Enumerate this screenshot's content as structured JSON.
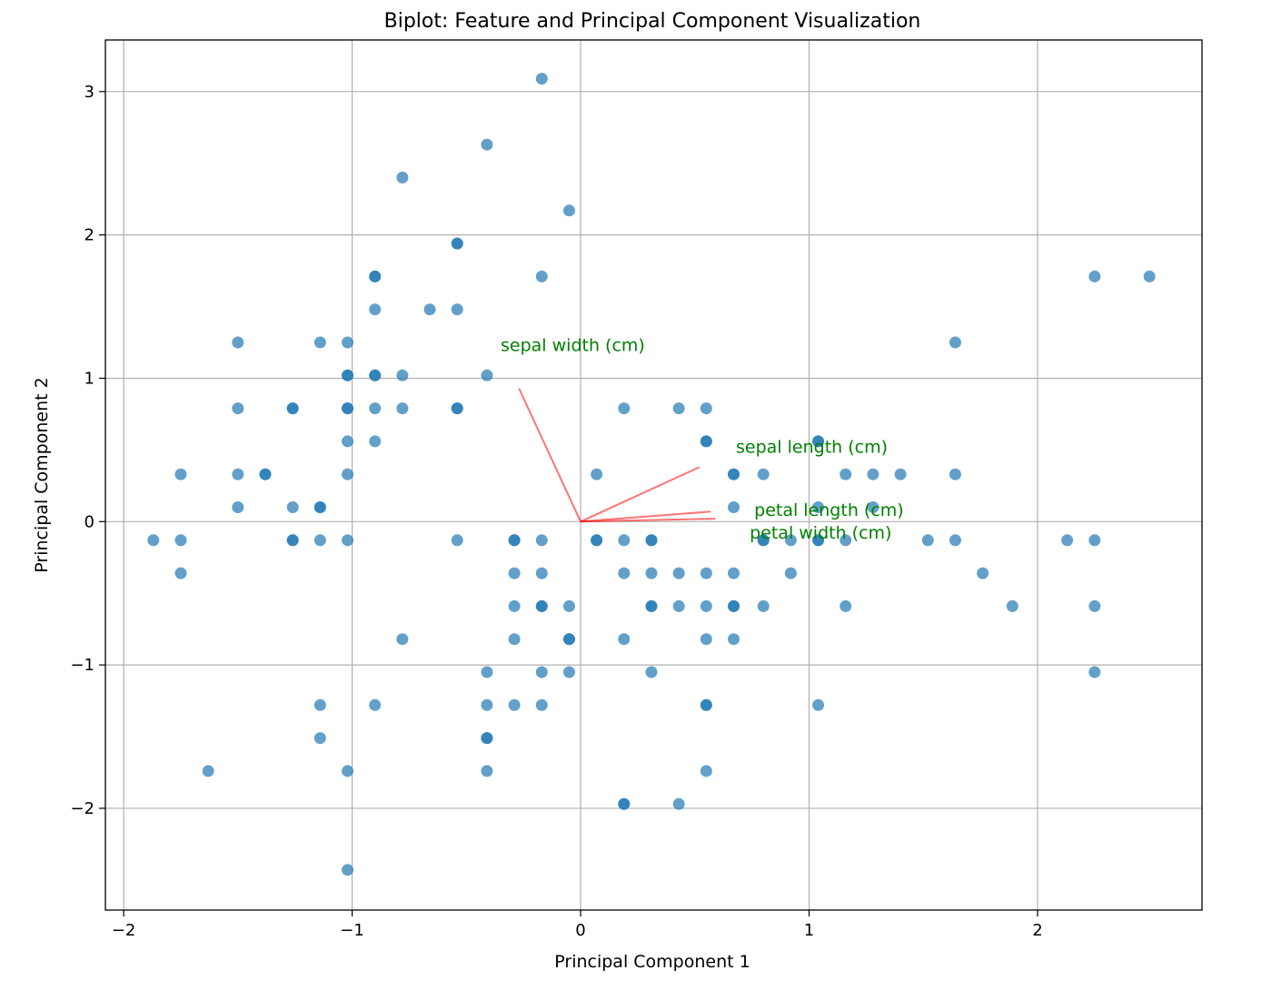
{
  "chart_data": {
    "type": "scatter",
    "title": "Biplot: Feature and Principal Component Visualization",
    "xlabel": "Principal Component 1",
    "ylabel": "Principal Component 2",
    "xlim": [
      -2.08,
      2.72
    ],
    "ylim": [
      -2.71,
      3.36
    ],
    "xticks": [
      -2,
      -1,
      0,
      1,
      2
    ],
    "yticks": [
      -2,
      -1,
      0,
      1,
      2,
      3
    ],
    "xtick_labels": [
      "−2",
      "−1",
      "0",
      "1",
      "2"
    ],
    "ytick_labels": [
      "−2",
      "−1",
      "0",
      "1",
      "2",
      "3"
    ],
    "grid": true,
    "point_color": "#1f77b4",
    "arrow_color": "#ff0000",
    "label_color": "#008000",
    "points": [
      [
        -0.17,
        3.09
      ],
      [
        -0.41,
        2.63
      ],
      [
        -0.78,
        2.4
      ],
      [
        -0.05,
        2.17
      ],
      [
        -0.54,
        1.94
      ],
      [
        -0.54,
        1.94
      ],
      [
        -0.9,
        1.71
      ],
      [
        -0.9,
        1.71
      ],
      [
        -0.17,
        1.71
      ],
      [
        2.25,
        1.71
      ],
      [
        2.49,
        1.71
      ],
      [
        -0.9,
        1.48
      ],
      [
        -0.66,
        1.48
      ],
      [
        -0.54,
        1.48
      ],
      [
        -1.5,
        1.25
      ],
      [
        -1.14,
        1.25
      ],
      [
        -1.02,
        1.25
      ],
      [
        1.64,
        1.25
      ],
      [
        -1.02,
        1.02
      ],
      [
        -1.02,
        1.02
      ],
      [
        -0.9,
        1.02
      ],
      [
        -0.9,
        1.02
      ],
      [
        -0.78,
        1.02
      ],
      [
        -0.41,
        1.02
      ],
      [
        -1.5,
        0.79
      ],
      [
        -1.26,
        0.79
      ],
      [
        -1.26,
        0.79
      ],
      [
        -1.02,
        0.79
      ],
      [
        -1.02,
        0.79
      ],
      [
        -0.9,
        0.79
      ],
      [
        -0.78,
        0.79
      ],
      [
        -0.54,
        0.79
      ],
      [
        -0.54,
        0.79
      ],
      [
        0.19,
        0.79
      ],
      [
        0.43,
        0.79
      ],
      [
        0.55,
        0.79
      ],
      [
        -1.02,
        0.56
      ],
      [
        -0.9,
        0.56
      ],
      [
        0.55,
        0.56
      ],
      [
        0.55,
        0.56
      ],
      [
        1.04,
        0.56
      ],
      [
        1.04,
        0.56
      ],
      [
        -1.75,
        0.33
      ],
      [
        -1.5,
        0.33
      ],
      [
        -1.38,
        0.33
      ],
      [
        -1.38,
        0.33
      ],
      [
        -1.02,
        0.33
      ],
      [
        0.07,
        0.33
      ],
      [
        0.67,
        0.33
      ],
      [
        0.67,
        0.33
      ],
      [
        0.8,
        0.33
      ],
      [
        1.16,
        0.33
      ],
      [
        1.28,
        0.33
      ],
      [
        1.4,
        0.33
      ],
      [
        1.64,
        0.33
      ],
      [
        -1.5,
        0.1
      ],
      [
        -1.26,
        0.1
      ],
      [
        -1.14,
        0.1
      ],
      [
        -1.14,
        0.1
      ],
      [
        0.67,
        0.1
      ],
      [
        1.04,
        0.1
      ],
      [
        1.28,
        0.1
      ],
      [
        -1.87,
        -0.13
      ],
      [
        -1.75,
        -0.13
      ],
      [
        -1.26,
        -0.13
      ],
      [
        -1.26,
        -0.13
      ],
      [
        -1.14,
        -0.13
      ],
      [
        -1.02,
        -0.13
      ],
      [
        -0.54,
        -0.13
      ],
      [
        -0.29,
        -0.13
      ],
      [
        -0.29,
        -0.13
      ],
      [
        -0.17,
        -0.13
      ],
      [
        0.07,
        -0.13
      ],
      [
        0.07,
        -0.13
      ],
      [
        0.19,
        -0.13
      ],
      [
        0.31,
        -0.13
      ],
      [
        0.31,
        -0.13
      ],
      [
        0.8,
        -0.13
      ],
      [
        0.8,
        -0.13
      ],
      [
        0.92,
        -0.13
      ],
      [
        1.04,
        -0.13
      ],
      [
        1.04,
        -0.13
      ],
      [
        1.16,
        -0.13
      ],
      [
        1.52,
        -0.13
      ],
      [
        1.64,
        -0.13
      ],
      [
        2.13,
        -0.13
      ],
      [
        2.25,
        -0.13
      ],
      [
        -1.75,
        -0.36
      ],
      [
        -0.29,
        -0.36
      ],
      [
        -0.17,
        -0.36
      ],
      [
        0.19,
        -0.36
      ],
      [
        0.31,
        -0.36
      ],
      [
        0.43,
        -0.36
      ],
      [
        0.55,
        -0.36
      ],
      [
        0.67,
        -0.36
      ],
      [
        0.92,
        -0.36
      ],
      [
        1.76,
        -0.36
      ],
      [
        -0.29,
        -0.59
      ],
      [
        -0.17,
        -0.59
      ],
      [
        -0.17,
        -0.59
      ],
      [
        -0.05,
        -0.59
      ],
      [
        0.31,
        -0.59
      ],
      [
        0.31,
        -0.59
      ],
      [
        0.43,
        -0.59
      ],
      [
        0.55,
        -0.59
      ],
      [
        0.67,
        -0.59
      ],
      [
        0.67,
        -0.59
      ],
      [
        0.8,
        -0.59
      ],
      [
        1.16,
        -0.59
      ],
      [
        1.89,
        -0.59
      ],
      [
        2.25,
        -0.59
      ],
      [
        -0.78,
        -0.82
      ],
      [
        -0.29,
        -0.82
      ],
      [
        -0.05,
        -0.82
      ],
      [
        -0.05,
        -0.82
      ],
      [
        0.19,
        -0.82
      ],
      [
        0.55,
        -0.82
      ],
      [
        0.67,
        -0.82
      ],
      [
        -0.41,
        -1.05
      ],
      [
        -0.17,
        -1.05
      ],
      [
        -0.05,
        -1.05
      ],
      [
        0.31,
        -1.05
      ],
      [
        2.25,
        -1.05
      ],
      [
        -1.14,
        -1.28
      ],
      [
        -0.9,
        -1.28
      ],
      [
        -0.41,
        -1.28
      ],
      [
        -0.29,
        -1.28
      ],
      [
        -0.17,
        -1.28
      ],
      [
        0.55,
        -1.28
      ],
      [
        0.55,
        -1.28
      ],
      [
        1.04,
        -1.28
      ],
      [
        -1.14,
        -1.51
      ],
      [
        -0.41,
        -1.51
      ],
      [
        -0.41,
        -1.51
      ],
      [
        -1.63,
        -1.74
      ],
      [
        -1.02,
        -1.74
      ],
      [
        -0.41,
        -1.74
      ],
      [
        0.55,
        -1.74
      ],
      [
        0.19,
        -1.97
      ],
      [
        0.19,
        -1.97
      ],
      [
        0.43,
        -1.97
      ],
      [
        -1.02,
        -2.43
      ]
    ],
    "loadings": [
      {
        "feature": "sepal length (cm)",
        "x": 0.52,
        "y": 0.38,
        "label_x": 0.68,
        "label_y": 0.48
      },
      {
        "feature": "sepal width (cm)",
        "x": -0.27,
        "y": 0.93,
        "label_x": -0.35,
        "label_y": 1.19
      },
      {
        "feature": "petal length (cm)",
        "x": 0.59,
        "y": 0.02,
        "label_x": 0.76,
        "label_y": 0.04
      },
      {
        "feature": "petal width (cm)",
        "x": 0.57,
        "y": 0.07,
        "label_x": 0.74,
        "label_y": 0.09
      }
    ]
  }
}
